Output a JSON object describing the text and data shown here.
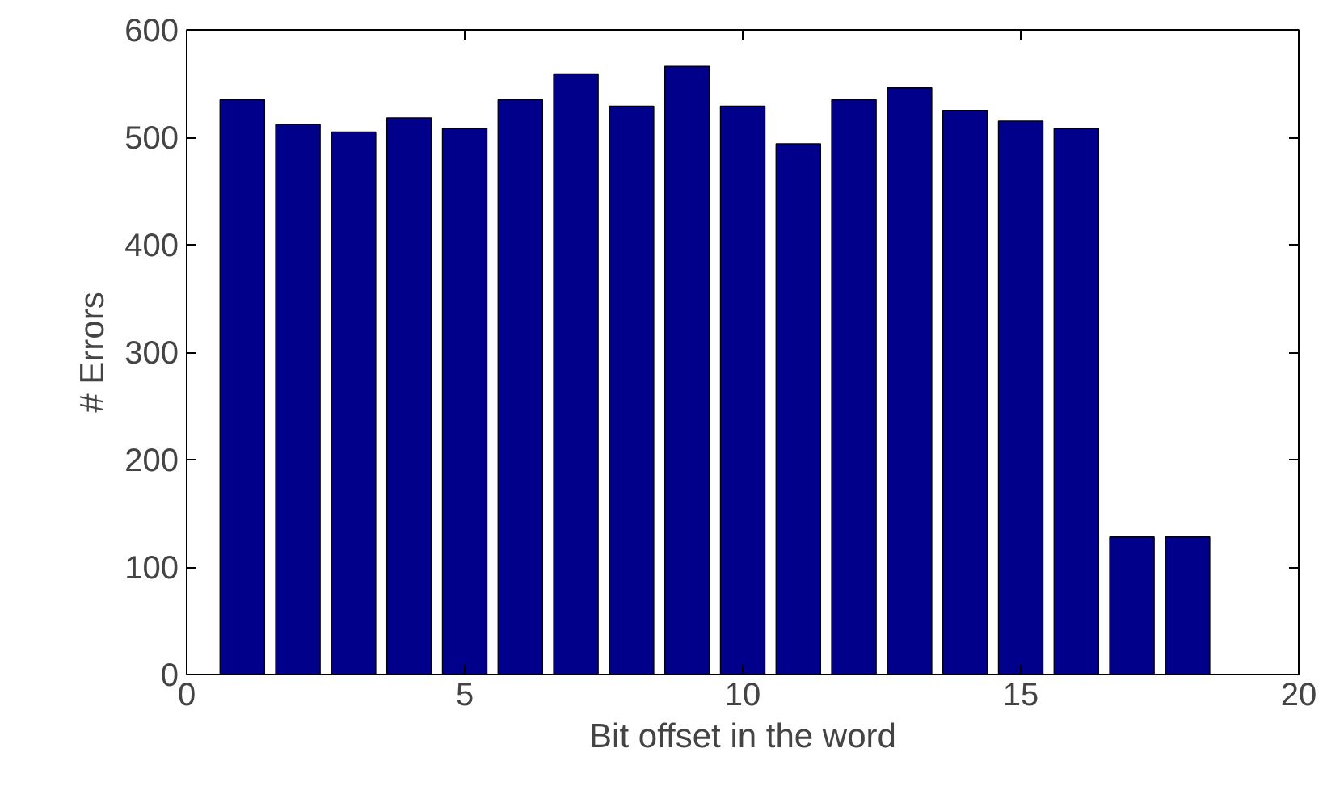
{
  "chart_data": {
    "type": "bar",
    "xlabel": "Bit offset in the word",
    "ylabel": "# Errors",
    "x": [
      1,
      2,
      3,
      4,
      5,
      6,
      7,
      8,
      9,
      10,
      11,
      12,
      13,
      14,
      15,
      16,
      17,
      18
    ],
    "values": [
      535,
      512,
      505,
      518,
      508,
      535,
      559,
      529,
      566,
      529,
      494,
      535,
      546,
      525,
      515,
      508,
      128,
      128
    ],
    "color": "#00008b",
    "xlim": [
      0,
      20
    ],
    "xticks": [
      0,
      5,
      10,
      15,
      20
    ],
    "ylim": [
      0,
      600
    ],
    "yticks": [
      0,
      100,
      200,
      300,
      400,
      500,
      600
    ],
    "grid": false
  }
}
